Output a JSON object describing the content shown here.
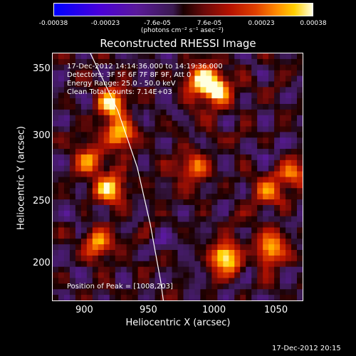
{
  "chart_data": {
    "type": "heatmap",
    "title": "Reconstructed RHESSI Image",
    "xlabel": "Heliocentric X (arcsec)",
    "ylabel": "Heliocentric Y (arcsec)",
    "xlim": [
      875,
      1067
    ],
    "ylim": [
      170,
      365
    ],
    "x_ticks": [
      900,
      950,
      1000,
      1050
    ],
    "y_ticks": [
      200,
      250,
      300,
      350
    ],
    "colorbar": {
      "ticks": [
        "-0.00038",
        "-0.00023",
        "-7.6e-05",
        "7.6e-05",
        "0.00023",
        "0.00038"
      ],
      "units": "(photons cm⁻² s⁻¹ asec⁻²)",
      "vmin": -0.00038,
      "vmax": 0.00038
    },
    "annotations": {
      "time": "17-Dec-2012 14:14:36.000 to 14:19:36.000",
      "detectors": "Detectors: 3F 5F 6F 7F 8F 9F, Att 0",
      "energy": "Energy Range: 25.0 - 50.0 keV",
      "method": "Clean    Total counts: 7.14E+03",
      "peak": "Position of Peak = [1008,203]"
    },
    "bright_sources": [
      {
        "x": 920,
        "y": 325,
        "intensity": 0.95
      },
      {
        "x": 903,
        "y": 280,
        "intensity": 0.7
      },
      {
        "x": 926,
        "y": 300,
        "intensity": 0.85
      },
      {
        "x": 1008,
        "y": 203,
        "intensity": 1.0
      },
      {
        "x": 1000,
        "y": 335,
        "intensity": 0.9
      },
      {
        "x": 990,
        "y": 345,
        "intensity": 0.9
      },
      {
        "x": 918,
        "y": 257,
        "intensity": 0.9
      },
      {
        "x": 1043,
        "y": 210,
        "intensity": 0.85
      },
      {
        "x": 1040,
        "y": 255,
        "intensity": 0.65
      },
      {
        "x": 1060,
        "y": 270,
        "intensity": 0.6
      },
      {
        "x": 985,
        "y": 275,
        "intensity": 0.65
      },
      {
        "x": 910,
        "y": 215,
        "intensity": 0.7
      }
    ],
    "limb_curve": [
      [
        904,
        365
      ],
      [
        925,
        320
      ],
      [
        940,
        275
      ],
      [
        950,
        230
      ],
      [
        958,
        185
      ],
      [
        960,
        170
      ]
    ],
    "limb_color": "#ffffff"
  },
  "timestamp": "17-Dec-2012 20:15"
}
